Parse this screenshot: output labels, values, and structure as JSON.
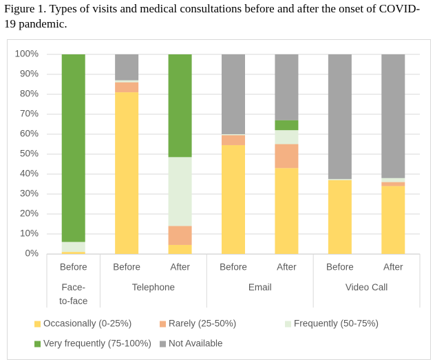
{
  "chart_data": {
    "type": "stacked-bar",
    "title": "Figure 1. Types of visits and medical consultations before and after the onset of COVID-19 pandemic.",
    "groups": [
      {
        "name": "Face-to-face",
        "categories": [
          "Before"
        ]
      },
      {
        "name": "Telephone",
        "categories": [
          "Before",
          "After"
        ]
      },
      {
        "name": "Email",
        "categories": [
          "Before",
          "After"
        ]
      },
      {
        "name": "Video Call",
        "categories": [
          "Before",
          "After"
        ]
      }
    ],
    "series": [
      {
        "name": "Occasionally (0-25%)",
        "color": "#ffd966",
        "values": [
          1,
          81,
          4.5,
          54.5,
          43,
          37,
          34
        ]
      },
      {
        "name": "Rarely (25-50%)",
        "color": "#f4b183",
        "values": [
          0,
          5,
          9.5,
          5,
          12,
          0,
          2
        ]
      },
      {
        "name": "Frequently (50-75%)",
        "color": "#e2efda",
        "values": [
          5,
          1,
          34.5,
          0.5,
          7,
          0.5,
          2
        ]
      },
      {
        "name": "Very frequently (75-100%)",
        "color": "#70ad47",
        "values": [
          94,
          0,
          51.5,
          0,
          5,
          0,
          0
        ]
      },
      {
        "name": "Not Available",
        "color": "#a5a5a5",
        "values": [
          0,
          13,
          0,
          40,
          33,
          62.5,
          62
        ]
      }
    ],
    "ylim": [
      0,
      100
    ],
    "yticks": [
      {
        "value": 0,
        "label": "0%"
      },
      {
        "value": 10,
        "label": "10%"
      },
      {
        "value": 20,
        "label": "20%"
      },
      {
        "value": 30,
        "label": "30%"
      },
      {
        "value": 40,
        "label": "40%"
      },
      {
        "value": 50,
        "label": "50%"
      },
      {
        "value": 60,
        "label": "60%"
      },
      {
        "value": 70,
        "label": "70%"
      },
      {
        "value": 80,
        "label": "80%"
      },
      {
        "value": 90,
        "label": "90%"
      },
      {
        "value": 100,
        "label": "100%"
      }
    ],
    "grid": true
  }
}
